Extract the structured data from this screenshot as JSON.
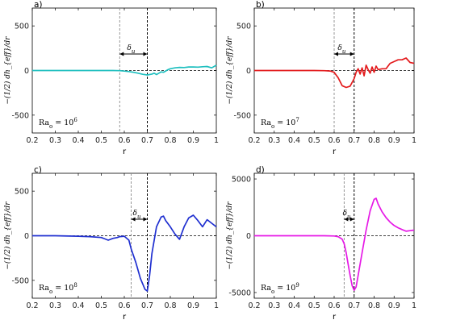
{
  "chart_data": [
    {
      "panel": "a)",
      "type": "line",
      "color": "#1fbfbf",
      "xlabel": "r",
      "ylabel": "−(1/2) dh_{eff}/dr",
      "xlim": [
        0.2,
        1.0
      ],
      "ylim": [
        -700,
        700
      ],
      "xticks": [
        "0.2",
        "0.3",
        "0.4",
        "0.5",
        "0.6",
        "0.7",
        "0.8",
        "0.9",
        "1"
      ],
      "yticks": [
        "-500",
        "0",
        "500"
      ],
      "ytick_values": [
        -500,
        0,
        500
      ],
      "annotation": "Ra",
      "annotation_sub": "o",
      "annotation_eq": " = 10",
      "annotation_exp": "6",
      "delta_label": "δ",
      "delta_sub": "u",
      "vlines": [
        0.58,
        0.7
      ],
      "series": [
        {
          "x": [
            0.2,
            0.25,
            0.3,
            0.35,
            0.4,
            0.45,
            0.5,
            0.55,
            0.58,
            0.6,
            0.62,
            0.64,
            0.66,
            0.68,
            0.7,
            0.72,
            0.73,
            0.74,
            0.75,
            0.76,
            0.77,
            0.78,
            0.79,
            0.8,
            0.82,
            0.84,
            0.86,
            0.88,
            0.9,
            0.92,
            0.94,
            0.96,
            0.98,
            1.0
          ],
          "y": [
            0,
            0,
            0,
            0,
            0,
            0,
            0,
            0,
            -2,
            -6,
            -12,
            -20,
            -30,
            -42,
            -50,
            -40,
            -30,
            -45,
            -30,
            -15,
            -20,
            -5,
            10,
            20,
            30,
            35,
            33,
            40,
            40,
            38,
            42,
            45,
            30,
            60
          ]
        }
      ]
    },
    {
      "panel": "b)",
      "type": "line",
      "color": "#e31a1c",
      "xlabel": "r",
      "ylabel": "−(1/2) dh_{eff}/dr",
      "xlim": [
        0.2,
        1.0
      ],
      "ylim": [
        -700,
        700
      ],
      "xticks": [
        "0.2",
        "0.3",
        "0.4",
        "0.5",
        "0.6",
        "0.7",
        "0.8",
        "0.9",
        "1"
      ],
      "yticks": [
        "-500",
        "0",
        "500"
      ],
      "ytick_values": [
        -500,
        0,
        500
      ],
      "annotation": "Ra",
      "annotation_sub": "o",
      "annotation_eq": " = 10",
      "annotation_exp": "7",
      "delta_label": "δ",
      "delta_sub": "u",
      "vlines": [
        0.6,
        0.7
      ],
      "series": [
        {
          "x": [
            0.2,
            0.3,
            0.4,
            0.5,
            0.55,
            0.58,
            0.6,
            0.62,
            0.64,
            0.66,
            0.68,
            0.7,
            0.71,
            0.72,
            0.73,
            0.74,
            0.75,
            0.76,
            0.77,
            0.78,
            0.79,
            0.8,
            0.81,
            0.82,
            0.84,
            0.86,
            0.88,
            0.9,
            0.92,
            0.94,
            0.96,
            0.98,
            1.0
          ],
          "y": [
            0,
            0,
            0,
            0,
            -2,
            -5,
            -20,
            -80,
            -170,
            -190,
            -175,
            -90,
            -20,
            20,
            -40,
            30,
            -60,
            60,
            10,
            -30,
            40,
            -20,
            50,
            10,
            20,
            20,
            80,
            100,
            120,
            120,
            140,
            90,
            80
          ]
        }
      ]
    },
    {
      "panel": "c)",
      "type": "line",
      "color": "#1f2fd0",
      "xlabel": "r",
      "ylabel": "−(1/2) dh_{eff}/dr",
      "xlim": [
        0.2,
        1.0
      ],
      "ylim": [
        -700,
        700
      ],
      "xticks": [
        "0.2",
        "0.3",
        "0.4",
        "0.5",
        "0.6",
        "0.7",
        "0.8",
        "0.9",
        "1"
      ],
      "yticks": [
        "-500",
        "0",
        "500"
      ],
      "ytick_values": [
        -500,
        0,
        500
      ],
      "annotation": "Ra",
      "annotation_sub": "o",
      "annotation_eq": " = 10",
      "annotation_exp": "8",
      "delta_label": "δ",
      "delta_sub": "u",
      "vlines": [
        0.63,
        0.7
      ],
      "series": [
        {
          "x": [
            0.2,
            0.3,
            0.4,
            0.45,
            0.5,
            0.53,
            0.55,
            0.57,
            0.58,
            0.6,
            0.62,
            0.63,
            0.65,
            0.67,
            0.69,
            0.7,
            0.71,
            0.72,
            0.74,
            0.76,
            0.77,
            0.78,
            0.8,
            0.82,
            0.84,
            0.86,
            0.88,
            0.9,
            0.92,
            0.94,
            0.96,
            0.98,
            1.0
          ],
          "y": [
            0,
            0,
            -5,
            -10,
            -20,
            -50,
            -30,
            -20,
            -10,
            -5,
            -50,
            -150,
            -300,
            -480,
            -600,
            -620,
            -450,
            -200,
            100,
            210,
            220,
            170,
            100,
            20,
            -40,
            100,
            200,
            230,
            170,
            100,
            180,
            140,
            100
          ]
        }
      ]
    },
    {
      "panel": "d)",
      "type": "line",
      "color": "#e619e6",
      "xlabel": "r",
      "ylabel": "−(1/2) dh_{eff}/dr",
      "xlim": [
        0.2,
        1.0
      ],
      "ylim": [
        -5500,
        5500
      ],
      "xticks": [
        "0.2",
        "0.3",
        "0.4",
        "0.5",
        "0.6",
        "0.7",
        "0.8",
        "0.9",
        "1"
      ],
      "yticks": [
        "-5000",
        "0",
        "5000"
      ],
      "ytick_values": [
        -5000,
        0,
        5000
      ],
      "annotation": "Ra",
      "annotation_sub": "o",
      "annotation_eq": " = 10",
      "annotation_exp": "9",
      "delta_label": "δ",
      "delta_sub": "u",
      "vlines": [
        0.65,
        0.7
      ],
      "series": [
        {
          "x": [
            0.2,
            0.4,
            0.5,
            0.55,
            0.6,
            0.62,
            0.64,
            0.65,
            0.66,
            0.67,
            0.68,
            0.69,
            0.7,
            0.71,
            0.72,
            0.74,
            0.76,
            0.78,
            0.8,
            0.81,
            0.82,
            0.84,
            0.86,
            0.88,
            0.9,
            0.92,
            0.94,
            0.96,
            0.98,
            1.0
          ],
          "y": [
            0,
            0,
            0,
            0,
            -20,
            -80,
            -300,
            -700,
            -1500,
            -2500,
            -3500,
            -4400,
            -4800,
            -4500,
            -3500,
            -1500,
            500,
            2200,
            3200,
            3300,
            2800,
            2100,
            1600,
            1200,
            900,
            700,
            550,
            400,
            450,
            500
          ]
        }
      ]
    }
  ]
}
